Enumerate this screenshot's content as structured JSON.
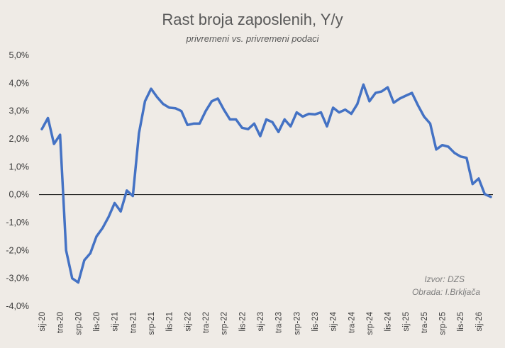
{
  "chart_data": {
    "type": "line",
    "title": "Rast broja zaposlenih, Y/y",
    "subtitle": "privremeni vs. privremeni podaci",
    "xlabel": "",
    "ylabel": "",
    "ylim": [
      -4,
      5
    ],
    "y_ticks": [
      "5,0%",
      "4,0%",
      "3,0%",
      "2,0%",
      "1,0%",
      "0,0%",
      "-1,0%",
      "-2,0%",
      "-3,0%",
      "-4,0%"
    ],
    "x_ticks": [
      "sij-20",
      "tra-20",
      "srp-20",
      "lis-20",
      "sij-21",
      "tra-21",
      "srp-21",
      "lis-21",
      "sij-22",
      "tra-22",
      "srp-22",
      "lis-22",
      "sij-23",
      "tra-23",
      "srp-23",
      "lis-23",
      "sij-24",
      "tra-24",
      "srp-24",
      "lis-24",
      "sij-25",
      "tra-25",
      "srp-25",
      "lis-25",
      "sij-26"
    ],
    "grid": false,
    "legend": "none",
    "series": [
      {
        "color": "#4472c4",
        "values": [
          2.35,
          2.75,
          1.82,
          2.15,
          -2.0,
          -3.0,
          -3.15,
          -2.35,
          -2.1,
          -1.5,
          -1.2,
          -0.8,
          -0.3,
          -0.6,
          0.15,
          -0.05,
          2.2,
          3.35,
          3.8,
          3.5,
          3.25,
          3.12,
          3.1,
          3.0,
          2.5,
          2.55,
          2.55,
          3.0,
          3.35,
          3.45,
          3.05,
          2.7,
          2.7,
          2.4,
          2.35,
          2.55,
          2.1,
          2.7,
          2.6,
          2.25,
          2.7,
          2.45,
          2.95,
          2.8,
          2.9,
          2.88,
          2.95,
          2.45,
          3.12,
          2.95,
          3.05,
          2.9,
          3.25,
          3.95,
          3.35,
          3.65,
          3.7,
          3.85,
          3.3,
          3.45,
          3.55,
          3.65,
          3.2,
          2.8,
          2.55,
          1.62,
          1.78,
          1.72,
          1.5,
          1.37,
          1.32,
          0.38,
          0.58,
          0.02,
          -0.08
        ]
      }
    ],
    "annotations": [
      "Izvor: DZS",
      "Obrada: I.Brkljača"
    ]
  }
}
